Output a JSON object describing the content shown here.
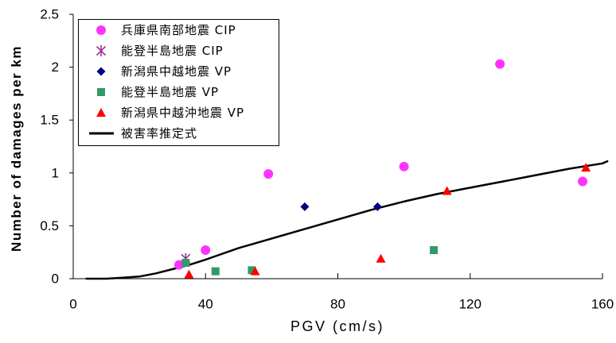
{
  "chart_data": {
    "type": "scatter",
    "xlabel": "PGV (cm/s)",
    "ylabel": "Number of damages per km",
    "xlim": [
      0,
      160
    ],
    "ylim": [
      0,
      2.5
    ],
    "xticks": [
      {
        "value": 0,
        "label": "0"
      },
      {
        "value": 40,
        "label": "40"
      },
      {
        "value": 80,
        "label": "80"
      },
      {
        "value": 120,
        "label": "120"
      },
      {
        "value": 160,
        "label": "160"
      }
    ],
    "yticks": [
      {
        "value": 0,
        "label": "0"
      },
      {
        "value": 0.5,
        "label": "0.5"
      },
      {
        "value": 1,
        "label": "1"
      },
      {
        "value": 1.5,
        "label": "1.5"
      },
      {
        "value": 2,
        "label": "2"
      },
      {
        "value": 2.5,
        "label": "2.5"
      }
    ],
    "grid": false,
    "legend": "top-left",
    "series": [
      {
        "name": "兵庫県南部地震 CIP",
        "type": "scatter",
        "marker": "circle",
        "color": "#ff33ff",
        "x": [
          32,
          40,
          59,
          100,
          129,
          154
        ],
        "y": [
          0.13,
          0.27,
          0.99,
          1.06,
          2.03,
          0.92
        ]
      },
      {
        "name": "能登半島地震 CIP",
        "type": "scatter",
        "marker": "star",
        "color": "#993399",
        "x": [
          34
        ],
        "y": [
          0.19
        ]
      },
      {
        "name": "新潟県中越地震 VP",
        "type": "scatter",
        "marker": "diamond",
        "color": "#000080",
        "x": [
          70,
          92
        ],
        "y": [
          0.68,
          0.68
        ]
      },
      {
        "name": "能登半島地震 VP",
        "type": "scatter",
        "marker": "square",
        "color": "#339966",
        "x": [
          34,
          43,
          54,
          109
        ],
        "y": [
          0.15,
          0.07,
          0.08,
          0.27
        ]
      },
      {
        "name": "新潟県中越沖地震 VP",
        "type": "scatter",
        "marker": "triangle",
        "color": "#ff0000",
        "x": [
          35,
          55,
          93,
          113,
          155
        ],
        "y": [
          0.04,
          0.07,
          0.19,
          0.83,
          1.05
        ]
      },
      {
        "name": "被害率推定式",
        "type": "line",
        "color": "#000000",
        "x": [
          4,
          10,
          15,
          20,
          25,
          30,
          35,
          40,
          50,
          60,
          70,
          80,
          90,
          100,
          110,
          120,
          130,
          140,
          150,
          160,
          161.5
        ],
        "y": [
          0,
          0,
          0.01,
          0.02,
          0.05,
          0.09,
          0.13,
          0.18,
          0.29,
          0.38,
          0.47,
          0.56,
          0.65,
          0.73,
          0.8,
          0.86,
          0.92,
          0.98,
          1.04,
          1.09,
          1.11
        ]
      }
    ]
  }
}
